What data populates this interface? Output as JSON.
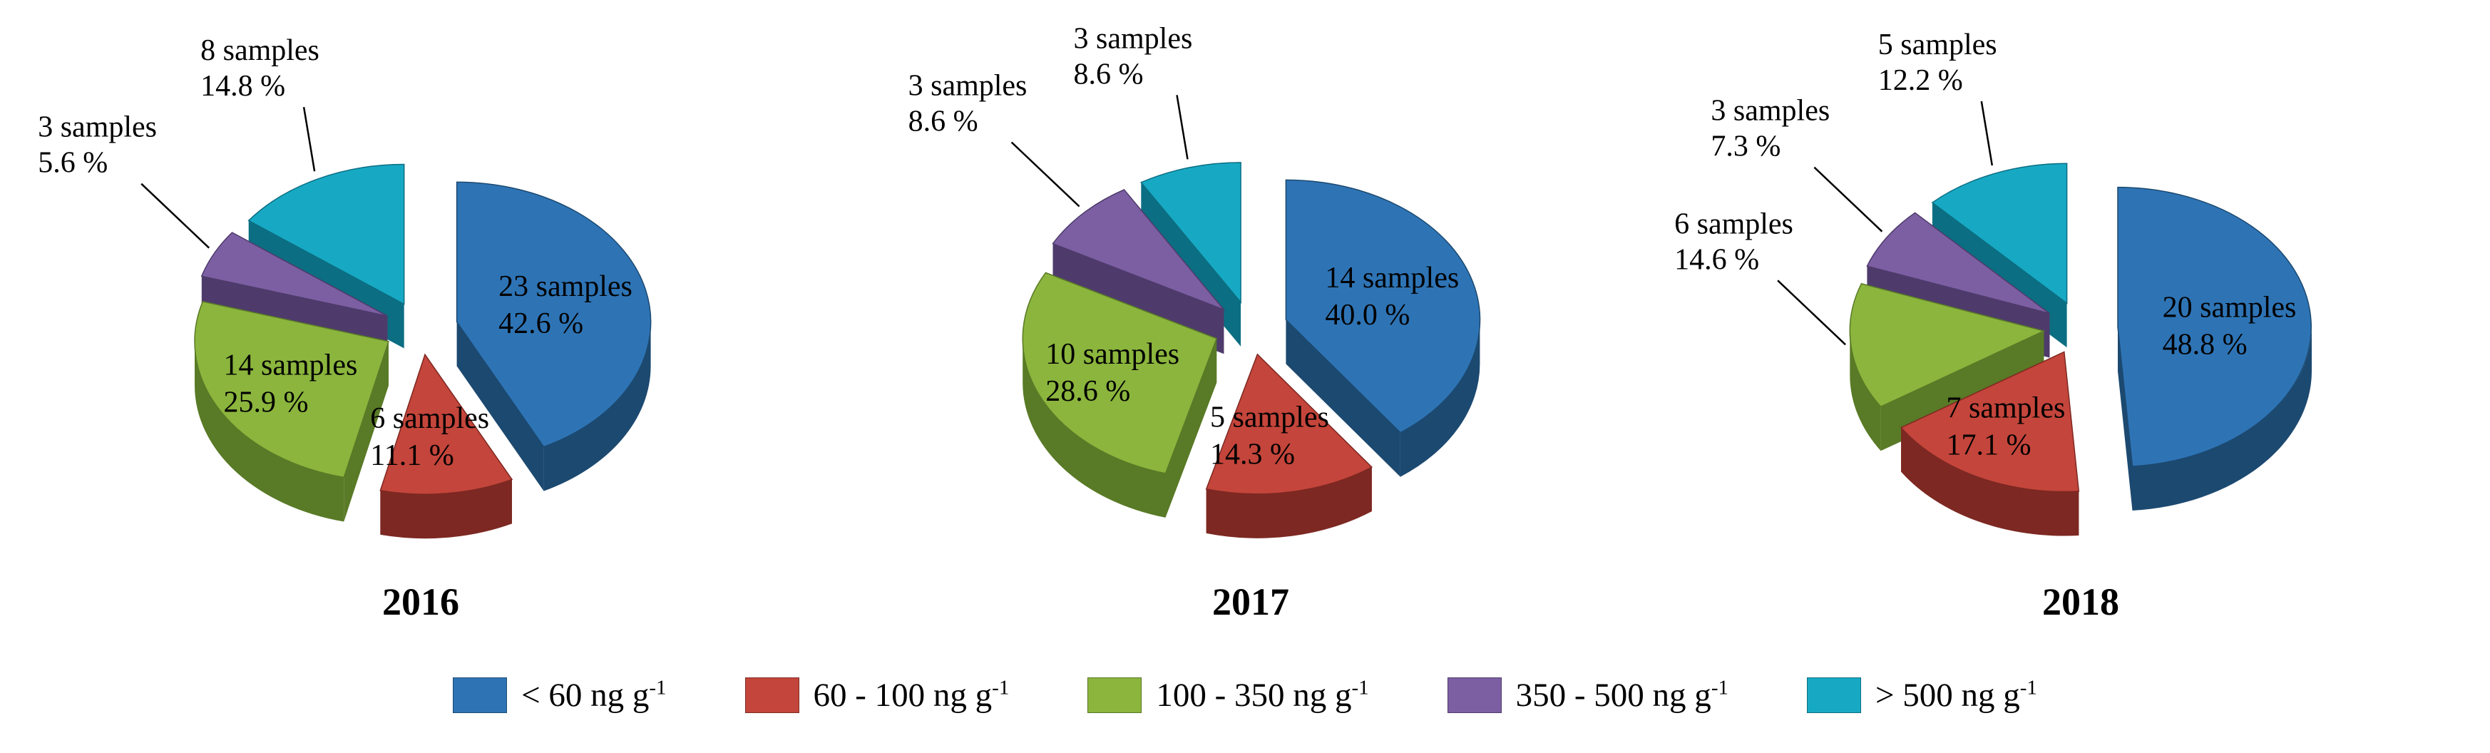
{
  "figure": {
    "background": "#ffffff"
  },
  "palette": [
    {
      "name": "blue",
      "top": "#2E74B5",
      "side": "#1C4970"
    },
    {
      "name": "red",
      "top": "#C4453B",
      "side": "#7D2822"
    },
    {
      "name": "green",
      "top": "#8BB53D",
      "side": "#597A26"
    },
    {
      "name": "purple",
      "top": "#7C5FA3",
      "side": "#4E3B6B"
    },
    {
      "name": "teal",
      "top": "#17A9C4",
      "side": "#0C6E82"
    }
  ],
  "legend": {
    "position": "bottom",
    "items": [
      {
        "label": "< 60 ng g",
        "sup": "-1",
        "color": "#2E74B5"
      },
      {
        "label": "60 - 100 ng g",
        "sup": "-1",
        "color": "#C4453B"
      },
      {
        "label": "100 - 350 ng g",
        "sup": "-1",
        "color": "#8BB53D"
      },
      {
        "label": "350 - 500 ng g",
        "sup": "-1",
        "color": "#7C5FA3"
      },
      {
        "label": "> 500 ng g",
        "sup": "-1",
        "color": "#17A9C4"
      }
    ]
  },
  "chart_data": [
    {
      "type": "pie",
      "title": "2016",
      "slices": [
        {
          "category": "< 60 ng g-1",
          "samples": 23,
          "pct": 42.6,
          "samples_label": "23 samples",
          "pct_label": "42.6 %"
        },
        {
          "category": "60 - 100 ng g-1",
          "samples": 6,
          "pct": 11.1,
          "samples_label": "6 samples",
          "pct_label": "11.1 %"
        },
        {
          "category": "100 - 350 ng g-1",
          "samples": 14,
          "pct": 25.9,
          "samples_label": "14 samples",
          "pct_label": "25.9 %"
        },
        {
          "category": "350 - 500 ng g-1",
          "samples": 3,
          "pct": 5.6,
          "samples_label": "3 samples",
          "pct_label": "5.6 %"
        },
        {
          "category": "> 500 ng g-1",
          "samples": 8,
          "pct": 14.8,
          "samples_label": "8 samples",
          "pct_label": "14.8 %"
        }
      ]
    },
    {
      "type": "pie",
      "title": "2017",
      "slices": [
        {
          "category": "< 60 ng g-1",
          "samples": 14,
          "pct": 40.0,
          "samples_label": "14 samples",
          "pct_label": "40.0 %"
        },
        {
          "category": "60 - 100 ng g-1",
          "samples": 5,
          "pct": 14.3,
          "samples_label": "5 samples",
          "pct_label": "14.3 %"
        },
        {
          "category": "100 - 350 ng g-1",
          "samples": 10,
          "pct": 28.6,
          "samples_label": "10 samples",
          "pct_label": "28.6 %"
        },
        {
          "category": "350 - 500 ng g-1",
          "samples": 3,
          "pct": 8.6,
          "samples_label": "3 samples",
          "pct_label": "8.6 %"
        },
        {
          "category": "> 500 ng g-1",
          "samples": 3,
          "pct": 8.6,
          "samples_label": "3 samples",
          "pct_label": "8.6 %"
        }
      ]
    },
    {
      "type": "pie",
      "title": "2018",
      "slices": [
        {
          "category": "< 60 ng g-1",
          "samples": 20,
          "pct": 48.8,
          "samples_label": "20 samples",
          "pct_label": "48.8 %"
        },
        {
          "category": "60 - 100 ng g-1",
          "samples": 7,
          "pct": 17.1,
          "samples_label": "7 samples",
          "pct_label": "17.1 %"
        },
        {
          "category": "100 - 350 ng g-1",
          "samples": 6,
          "pct": 14.6,
          "samples_label": "6 samples",
          "pct_label": "14.6 %"
        },
        {
          "category": "350 - 500 ng g-1",
          "samples": 3,
          "pct": 7.3,
          "samples_label": "3 samples",
          "pct_label": "7.3 %"
        },
        {
          "category": "> 500 ng g-1",
          "samples": 5,
          "pct": 12.2,
          "samples_label": "5 samples",
          "pct_label": "12.2 %"
        }
      ]
    }
  ]
}
